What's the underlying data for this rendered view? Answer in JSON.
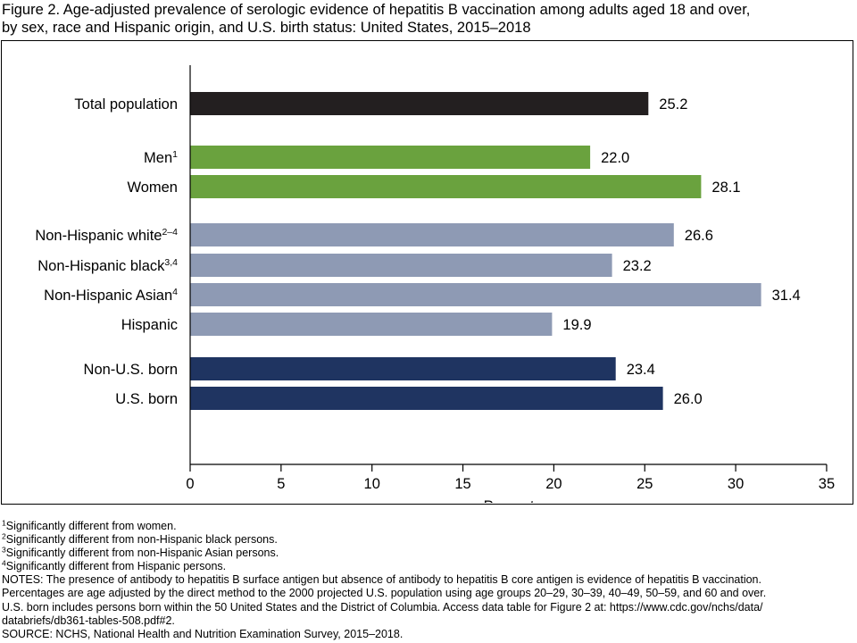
{
  "title": {
    "line1": "Figure 2. Age-adjusted prevalence of serologic evidence of hepatitis B vaccination among adults aged 18 and over,",
    "line2": "by sex, race and Hispanic origin, and U.S. birth status: United States, 2015–2018"
  },
  "chart_data": {
    "type": "bar",
    "orientation": "horizontal",
    "xlabel": "Percent",
    "xlim": [
      0,
      35
    ],
    "xticks": [
      0,
      5,
      10,
      15,
      20,
      25,
      30,
      35
    ],
    "grid": false,
    "value_labels": true,
    "colors": {
      "total": "#231f20",
      "sex": "#6aa23e",
      "race": "#8e9ab4",
      "birth": "#1f3461"
    },
    "bars": [
      {
        "label": "Total population",
        "sup": "",
        "value": 25.2,
        "value_label": "25.2",
        "group": "total"
      },
      {
        "label": "Men",
        "sup": "1",
        "value": 22.0,
        "value_label": "22.0",
        "group": "sex"
      },
      {
        "label": "Women",
        "sup": "",
        "value": 28.1,
        "value_label": "28.1",
        "group": "sex"
      },
      {
        "label": "Non-Hispanic white",
        "sup": "2–4",
        "value": 26.6,
        "value_label": "26.6",
        "group": "race"
      },
      {
        "label": "Non-Hispanic black",
        "sup": "3,4",
        "value": 23.2,
        "value_label": "23.2",
        "group": "race"
      },
      {
        "label": "Non-Hispanic Asian",
        "sup": "4",
        "value": 31.4,
        "value_label": "31.4",
        "group": "race"
      },
      {
        "label": "Hispanic",
        "sup": "",
        "value": 19.9,
        "value_label": "19.9",
        "group": "race"
      },
      {
        "label": "Non-U.S. born",
        "sup": "",
        "value": 23.4,
        "value_label": "23.4",
        "group": "birth"
      },
      {
        "label": "U.S. born",
        "sup": "",
        "value": 26.0,
        "value_label": "26.0",
        "group": "birth"
      }
    ]
  },
  "footnotes": [
    {
      "sup": "1",
      "text": "Significantly different from women."
    },
    {
      "sup": "2",
      "text": "Significantly different from non-Hispanic black persons."
    },
    {
      "sup": "3",
      "text": "Significantly different from non-Hispanic Asian persons."
    },
    {
      "sup": "4",
      "text": "Significantly different from Hispanic persons."
    }
  ],
  "notes": [
    "NOTES: The presence of antibody to hepatitis B surface antigen but absence of antibody to hepatitis B core antigen is evidence of hepatitis B vaccination.",
    "Percentages are age adjusted by the direct method to the 2000 projected U.S. population using age groups 20–29, 30–39, 40–49, 50–59, and 60 and over.",
    "U.S. born includes persons born within the 50 United States and the District of Columbia. Access data table for Figure 2 at: https://www.cdc.gov/nchs/data/",
    "databriefs/db361-tables-508.pdf#2.",
    "SOURCE: NCHS, National Health and Nutrition Examination Survey, 2015–2018."
  ]
}
